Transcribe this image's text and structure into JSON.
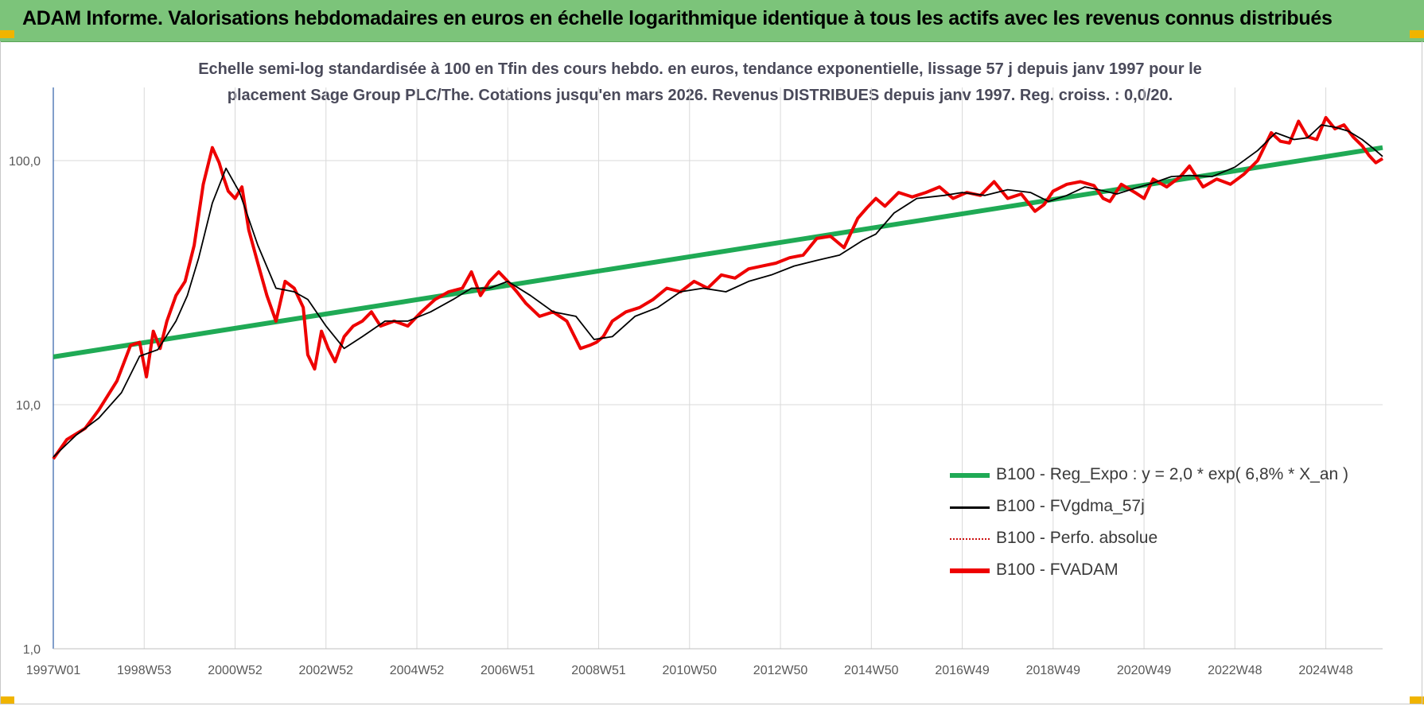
{
  "header": {
    "title": "ADAM Informe. Valorisations hebdomadaires en euros en échelle logarithmique identique à tous les actifs avec les revenus connus distribués"
  },
  "chart_data": {
    "type": "line",
    "title_line1": "Echelle semi-log standardisée à 100 en Tfin des cours hebdo. en euros, tendance exponentielle, lissage 57 j depuis janv 1997 pour le",
    "title_line2": "placement Sage Group PLC/The. Cotations jusqu'en mars 2026. Revenus DISTRIBUES depuis janv 1997. Reg. croiss. : 0,0/20.",
    "y_scale": "log",
    "ylim": [
      1,
      200
    ],
    "y_ticks": [
      "1,0",
      "10,0",
      "100,0"
    ],
    "y_tick_values": [
      1,
      10,
      100
    ],
    "x_range": [
      1997.0,
      2026.25
    ],
    "x_ticks": [
      {
        "label": "1997W01",
        "year": 1997.0
      },
      {
        "label": "1998W53",
        "year": 1999.0
      },
      {
        "label": "2000W52",
        "year": 2001.0
      },
      {
        "label": "2002W52",
        "year": 2003.0
      },
      {
        "label": "2004W52",
        "year": 2005.0
      },
      {
        "label": "2006W51",
        "year": 2007.0
      },
      {
        "label": "2008W51",
        "year": 2009.0
      },
      {
        "label": "2010W50",
        "year": 2011.0
      },
      {
        "label": "2012W50",
        "year": 2013.0
      },
      {
        "label": "2014W50",
        "year": 2015.0
      },
      {
        "label": "2016W49",
        "year": 2017.0
      },
      {
        "label": "2018W49",
        "year": 2019.0
      },
      {
        "label": "2020W49",
        "year": 2021.0
      },
      {
        "label": "2022W48",
        "year": 2023.0
      },
      {
        "label": "2024W48",
        "year": 2025.0
      }
    ],
    "grid": "vertical and horizontal",
    "legend_position": "bottom-right",
    "series": [
      {
        "name": "B100 - Reg_Expo : y = 2,0 * exp( 6,8% *  X_an )",
        "color": "#1faa55",
        "style": "thick-solid",
        "x": [
          1997.0,
          2026.25
        ],
        "y": [
          15.7,
          113
        ]
      },
      {
        "name": "B100 - FVgdma_57j",
        "color": "#000000",
        "style": "solid",
        "x": [
          1997.0,
          1997.5,
          1998.0,
          1998.5,
          1998.9,
          1999.3,
          1999.7,
          1999.95,
          2000.2,
          2000.5,
          2000.8,
          2001.1,
          2001.5,
          2001.9,
          2002.3,
          2002.6,
          2003.0,
          2003.4,
          2003.8,
          2004.3,
          2004.8,
          2005.3,
          2005.8,
          2006.2,
          2006.6,
          2007.0,
          2007.5,
          2008.0,
          2008.5,
          2008.9,
          2009.3,
          2009.8,
          2010.3,
          2010.8,
          2011.3,
          2011.8,
          2012.3,
          2012.8,
          2013.3,
          2013.8,
          2014.3,
          2014.8,
          2015.1,
          2015.5,
          2016.0,
          2016.6,
          2017.0,
          2017.5,
          2018.0,
          2018.5,
          2018.9,
          2019.3,
          2019.7,
          2020.0,
          2020.4,
          2020.8,
          2021.2,
          2021.6,
          2022.0,
          2022.5,
          2023.0,
          2023.5,
          2023.9,
          2024.3,
          2024.6,
          2024.9,
          2025.2,
          2025.5,
          2025.8,
          2026.05,
          2026.25
        ],
        "y": [
          6.1,
          7.5,
          8.8,
          11.2,
          15.8,
          16.8,
          22,
          28,
          40,
          67,
          93,
          74,
          45,
          30,
          29,
          27,
          21,
          17,
          19,
          22,
          22,
          24,
          27,
          30,
          30,
          32,
          28,
          24,
          23,
          18.5,
          19,
          23,
          25,
          29,
          30,
          29,
          32,
          34,
          37,
          39,
          41,
          47,
          50,
          61,
          70,
          72,
          74,
          72,
          76,
          74,
          68,
          72,
          78,
          76,
          73,
          77,
          81,
          86,
          87,
          86,
          94,
          110,
          130,
          122,
          124,
          140,
          137,
          132,
          122,
          112,
          104
        ]
      },
      {
        "name": "B100 - Perfo. absolue",
        "color": "#cc1111",
        "style": "dotted"
      },
      {
        "name": "B100 - FVADAM",
        "color": "#ee0000",
        "style": "thick-solid",
        "x": [
          1997.0,
          1997.3,
          1997.7,
          1998.0,
          1998.4,
          1998.7,
          1998.9,
          1999.05,
          1999.2,
          1999.35,
          1999.5,
          1999.7,
          1999.9,
          2000.1,
          2000.3,
          2000.5,
          2000.65,
          2000.75,
          2000.85,
          2001.0,
          2001.15,
          2001.3,
          2001.5,
          2001.7,
          2001.9,
          2002.1,
          2002.3,
          2002.5,
          2002.6,
          2002.75,
          2002.9,
          2003.05,
          2003.2,
          2003.4,
          2003.6,
          2003.8,
          2004.0,
          2004.2,
          2004.5,
          2004.8,
          2005.1,
          2005.4,
          2005.7,
          2006.0,
          2006.2,
          2006.4,
          2006.6,
          2006.8,
          2007.0,
          2007.2,
          2007.4,
          2007.7,
          2008.0,
          2008.3,
          2008.6,
          2008.8,
          2008.95,
          2009.1,
          2009.3,
          2009.6,
          2009.9,
          2010.2,
          2010.5,
          2010.8,
          2011.1,
          2011.4,
          2011.7,
          2012.0,
          2012.3,
          2012.6,
          2012.9,
          2013.2,
          2013.5,
          2013.8,
          2014.1,
          2014.4,
          2014.7,
          2014.9,
          2015.1,
          2015.3,
          2015.6,
          2015.9,
          2016.2,
          2016.5,
          2016.8,
          2017.1,
          2017.4,
          2017.7,
          2018.0,
          2018.3,
          2018.6,
          2018.8,
          2019.0,
          2019.3,
          2019.6,
          2019.9,
          2020.1,
          2020.25,
          2020.5,
          2020.8,
          2021.0,
          2021.2,
          2021.5,
          2021.8,
          2022.0,
          2022.3,
          2022.6,
          2022.9,
          2023.2,
          2023.5,
          2023.8,
          2024.0,
          2024.2,
          2024.4,
          2024.6,
          2024.8,
          2025.0,
          2025.2,
          2025.4,
          2025.6,
          2025.8,
          2025.95,
          2026.1,
          2026.25
        ],
        "y": [
          6.0,
          7.2,
          8.0,
          9.5,
          12.5,
          17.5,
          18,
          13,
          20,
          17,
          22,
          28,
          32,
          45,
          80,
          113,
          98,
          85,
          75,
          70,
          78,
          52,
          38,
          28,
          22,
          32,
          30,
          25,
          16,
          14,
          20,
          17,
          15,
          19,
          21,
          22,
          24,
          21,
          22,
          21,
          24,
          27,
          29,
          30,
          35,
          28,
          32,
          35,
          32,
          29,
          26,
          23,
          24,
          22,
          17,
          17.5,
          18,
          19,
          22,
          24,
          25,
          27,
          30,
          29,
          32,
          30,
          34,
          33,
          36,
          37,
          38,
          40,
          41,
          48,
          49,
          44,
          58,
          64,
          70,
          65,
          74,
          71,
          74,
          78,
          70,
          74,
          72,
          82,
          70,
          73,
          62,
          66,
          75,
          80,
          82,
          79,
          70,
          68,
          80,
          74,
          70,
          84,
          78,
          86,
          95,
          78,
          84,
          80,
          88,
          100,
          130,
          120,
          118,
          145,
          125,
          122,
          150,
          135,
          140,
          125,
          115,
          105,
          98,
          102
        ]
      }
    ]
  }
}
